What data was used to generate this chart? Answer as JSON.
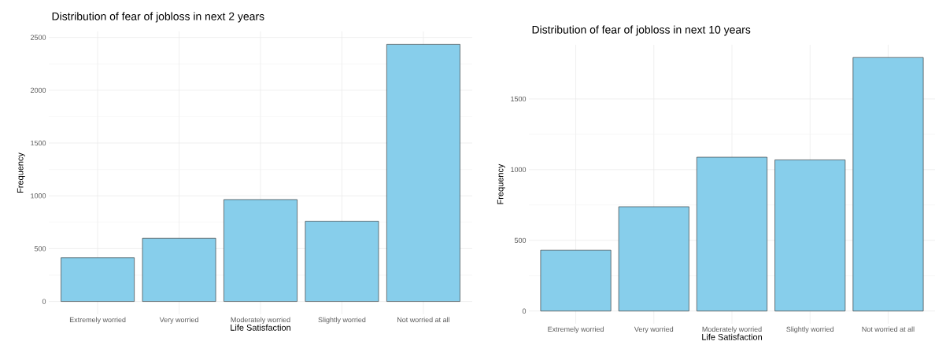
{
  "chart_data": [
    {
      "type": "bar",
      "title": "Distribution of fear of jobloss in next 2 years",
      "xlabel": "Life Satisfaction",
      "ylabel": "Frequency",
      "categories": [
        "Extremely worried",
        "Very worried",
        "Moderately worried",
        "Slightly worried",
        "Not worried at all"
      ],
      "values": [
        415,
        598,
        965,
        760,
        2435
      ],
      "color": "#87ceeb",
      "ylim": [
        -122,
        2557
      ],
      "yticks": [
        0,
        500,
        1000,
        1500,
        2000,
        2500
      ],
      "grid": true
    },
    {
      "type": "bar",
      "title": "Distribution of fear of jobloss in next 10 years",
      "xlabel": "Life Satisfaction",
      "ylabel": "Frequency",
      "categories": [
        "Extremely worried",
        "Very worried",
        "Moderately worried",
        "Slightly worried",
        "Not worried at all"
      ],
      "values": [
        431,
        738,
        1088,
        1069,
        1793
      ],
      "color": "#87ceeb",
      "ylim": [
        -90,
        1883
      ],
      "yticks": [
        0,
        500,
        1000,
        1500
      ],
      "grid": true
    }
  ]
}
